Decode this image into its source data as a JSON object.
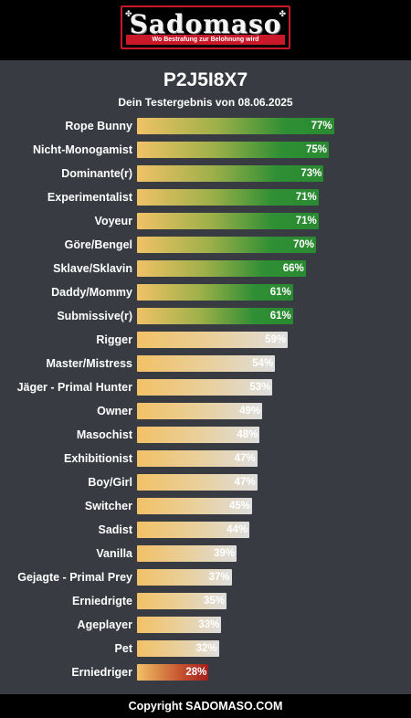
{
  "header": {
    "logo_text": "Sadomaso",
    "logo_tagline": "Wo Bestrafung zur Belohnung wird",
    "brand_color": "#c8182a"
  },
  "title": "P2J5I8X7",
  "subtitle": "Dein Testergebnis von 08.06.2025",
  "chart_data": {
    "type": "bar",
    "orientation": "horizontal",
    "categories": [
      "Rope Bunny",
      "Nicht-Monogamist",
      "Dominante(r)",
      "Experimentalist",
      "Voyeur",
      "Göre/Bengel",
      "Sklave/Sklavin",
      "Daddy/Mommy",
      "Submissive(r)",
      "Rigger",
      "Master/Mistress",
      "Jäger - Primal Hunter",
      "Owner",
      "Masochist",
      "Exhibitionist",
      "Boy/Girl",
      "Switcher",
      "Sadist",
      "Vanilla",
      "Gejagte - Primal Prey",
      "Erniedrigte",
      "Ageplayer",
      "Pet",
      "Erniedriger"
    ],
    "values": [
      77,
      75,
      73,
      71,
      71,
      70,
      66,
      61,
      61,
      59,
      54,
      53,
      49,
      48,
      47,
      47,
      45,
      44,
      39,
      37,
      35,
      33,
      32,
      28
    ],
    "value_labels": [
      "77%",
      "75%",
      "73%",
      "71%",
      "71%",
      "70%",
      "66%",
      "61%",
      "61%",
      "59%",
      "54%",
      "53%",
      "49%",
      "48%",
      "47%",
      "47%",
      "45%",
      "44%",
      "39%",
      "37%",
      "35%",
      "33%",
      "32%",
      "28%"
    ],
    "color_class": [
      "green",
      "green",
      "green",
      "green",
      "green",
      "green",
      "green",
      "green",
      "green",
      "neutral",
      "neutral",
      "neutral",
      "neutral",
      "neutral",
      "neutral",
      "neutral",
      "neutral",
      "neutral",
      "neutral",
      "neutral",
      "neutral",
      "neutral",
      "neutral",
      "red"
    ],
    "xlim": [
      0,
      100
    ],
    "colors": {
      "green": "#2a8a31",
      "neutral": "#dedede",
      "red": "#a31e1e",
      "start": "#f2c166"
    }
  },
  "footer": {
    "text": "Copyright SADOMASO.COM"
  }
}
